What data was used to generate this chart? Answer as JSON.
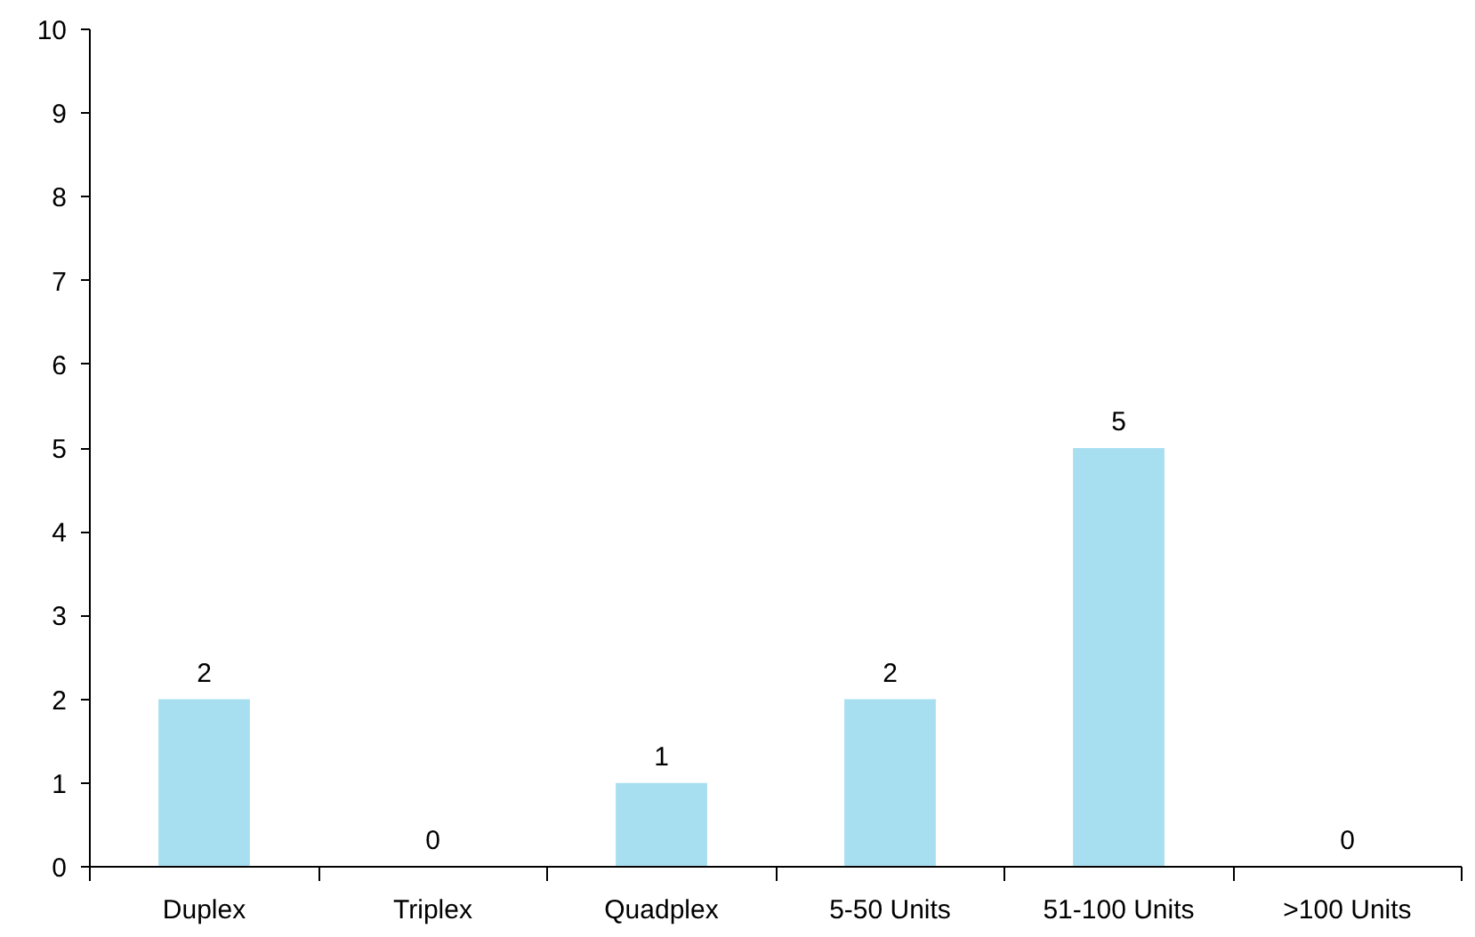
{
  "chart_data": {
    "type": "bar",
    "categories": [
      "Duplex",
      "Triplex",
      "Quadplex",
      "5-50 Units",
      "51-100 Units",
      ">100 Units"
    ],
    "values": [
      2,
      0,
      1,
      2,
      5,
      0
    ],
    "color": "#a8dff0",
    "ylim": [
      0,
      10
    ],
    "yticks": [
      0,
      1,
      2,
      3,
      4,
      5,
      6,
      7,
      8,
      9,
      10
    ],
    "data_labels": true
  }
}
